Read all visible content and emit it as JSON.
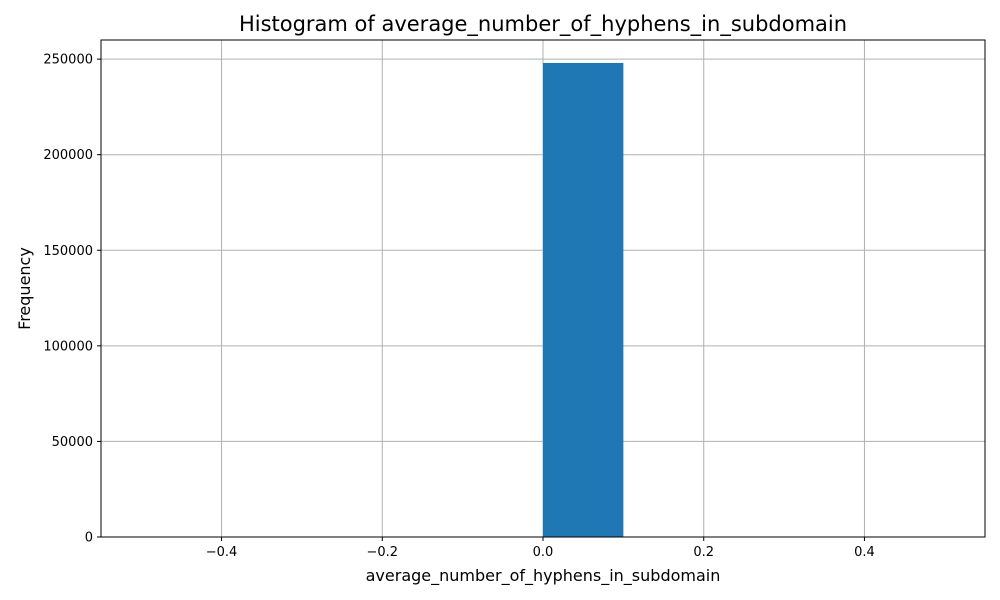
{
  "chart_data": {
    "type": "bar",
    "title": "Histogram of average_number_of_hyphens_in_subdomain",
    "xlabel": "average_number_of_hyphens_in_subdomain",
    "ylabel": "Frequency",
    "xlim": [
      -0.55,
      0.55
    ],
    "ylim": [
      0,
      260000
    ],
    "x_ticks": [
      -0.4,
      -0.2,
      0.0,
      0.2,
      0.4
    ],
    "x_tick_labels": [
      "−0.4",
      "−0.2",
      "0.0",
      "0.2",
      "0.4"
    ],
    "y_ticks": [
      0,
      50000,
      100000,
      150000,
      200000,
      250000
    ],
    "y_tick_labels": [
      "0",
      "50000",
      "100000",
      "150000",
      "200000",
      "250000"
    ],
    "bins": [
      {
        "x0": 0.0,
        "x1": 0.1,
        "count": 248000
      }
    ],
    "grid": true,
    "bar_color": "#1f77b4",
    "grid_color": "#b0b0b0"
  }
}
